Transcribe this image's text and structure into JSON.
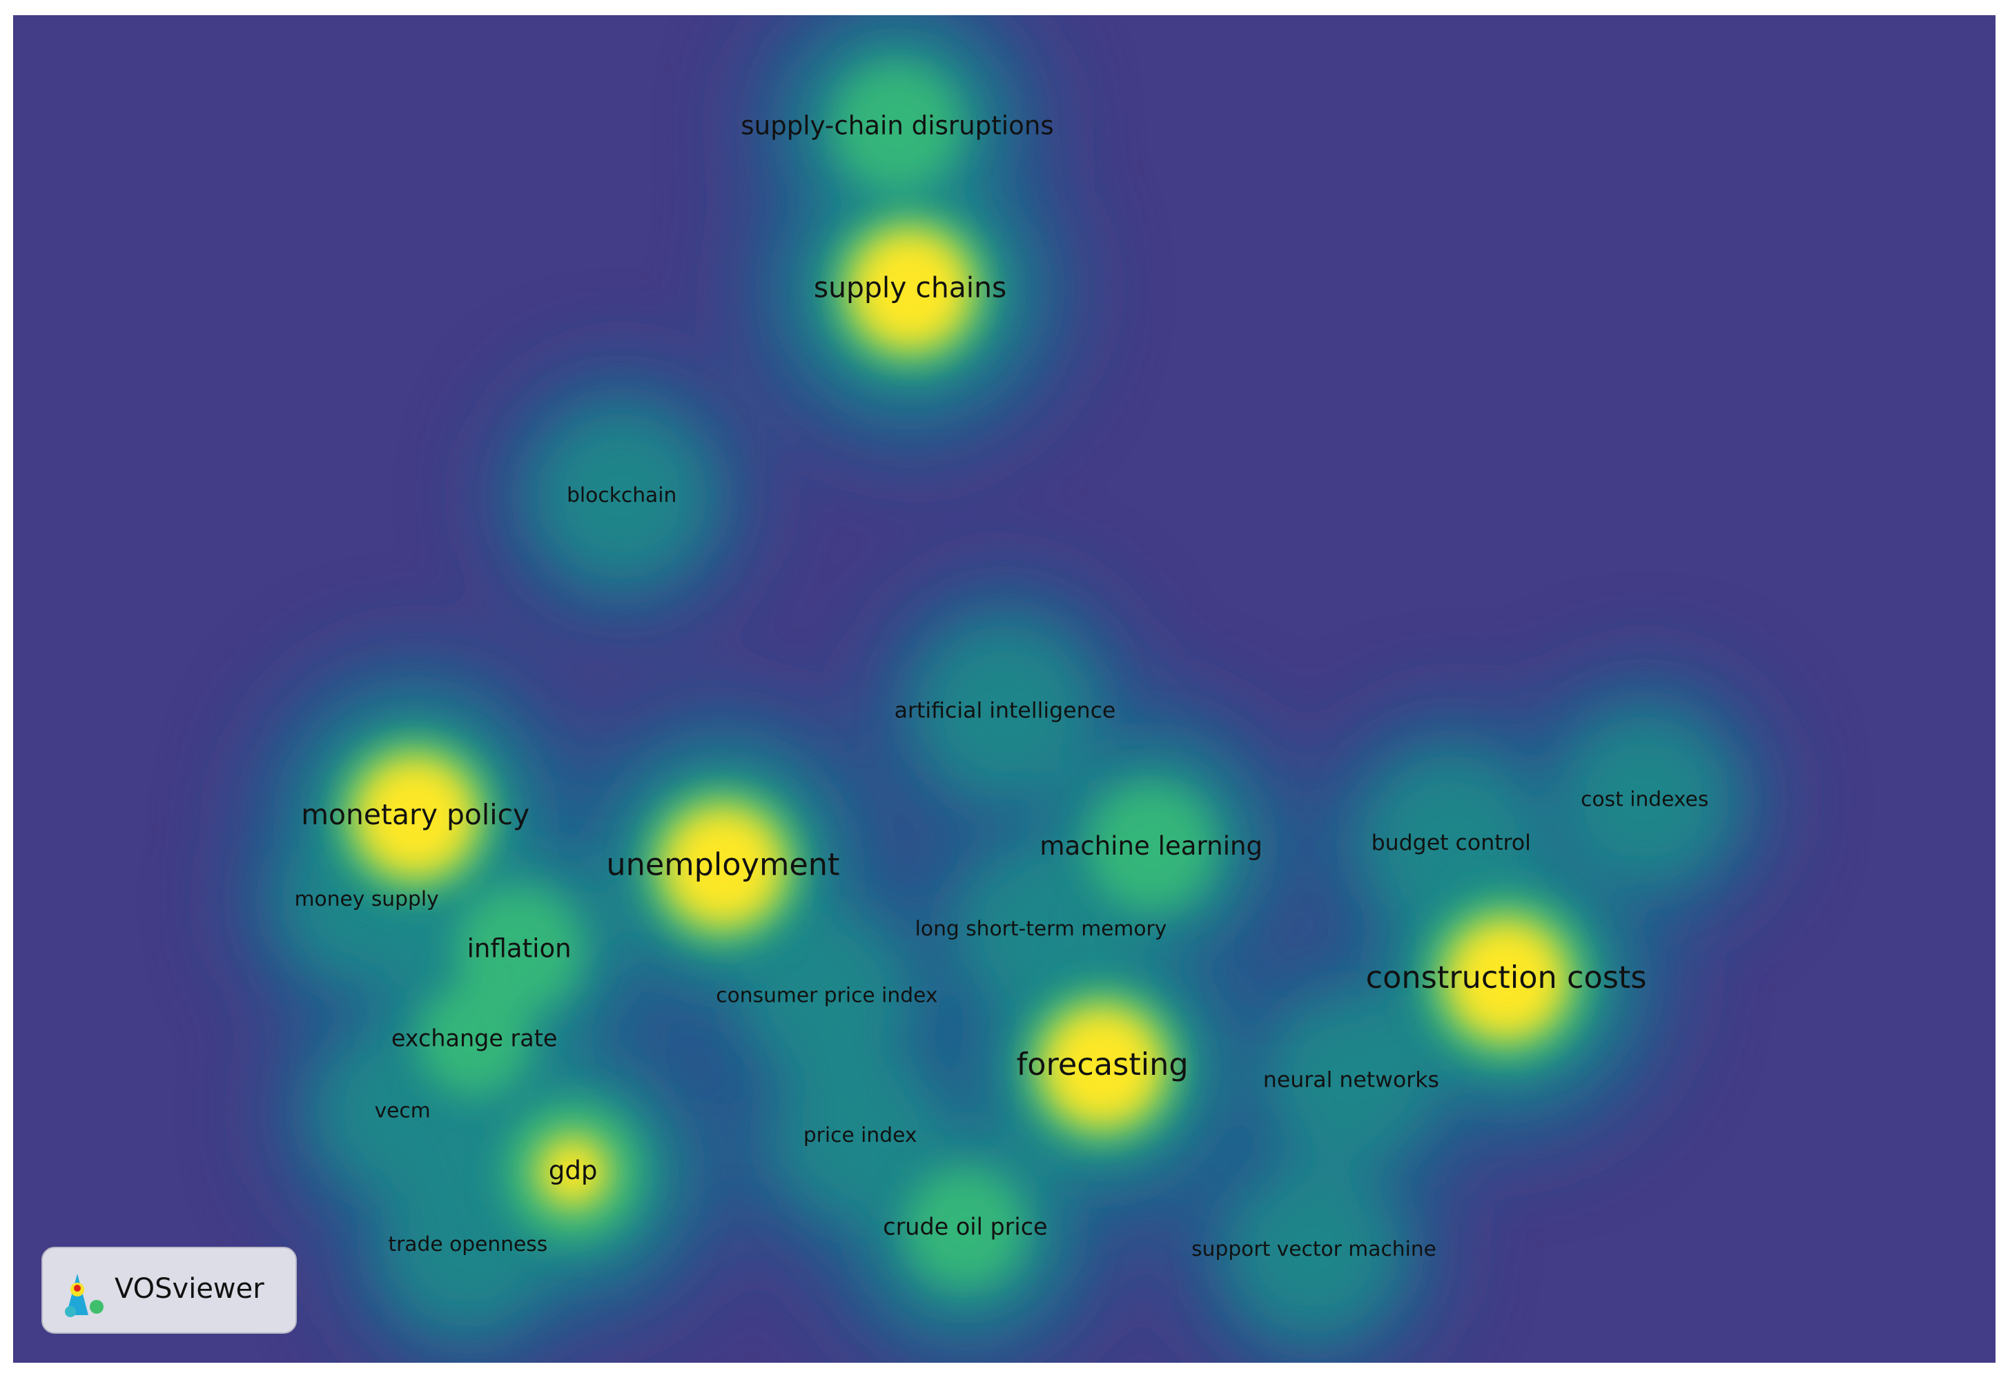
{
  "nodes": [
    {
      "label": "supply-chain disruptions"
    },
    {
      "label": "supply chains"
    },
    {
      "label": "blockchain"
    },
    {
      "label": "artificial intelligence"
    },
    {
      "label": "monetary policy"
    },
    {
      "label": "unemployment"
    },
    {
      "label": "machine learning"
    },
    {
      "label": "cost indexes"
    },
    {
      "label": "budget control"
    },
    {
      "label": "money supply"
    },
    {
      "label": "inflation"
    },
    {
      "label": "long short-term memory"
    },
    {
      "label": "construction costs"
    },
    {
      "label": "consumer price index"
    },
    {
      "label": "exchange rate"
    },
    {
      "label": "forecasting"
    },
    {
      "label": "neural networks"
    },
    {
      "label": "vecm"
    },
    {
      "label": "price index"
    },
    {
      "label": "gdp"
    },
    {
      "label": "crude oil price"
    },
    {
      "label": "support vector machine"
    },
    {
      "label": "trade openness"
    }
  ],
  "logo": {
    "text": "VOSviewer"
  }
}
